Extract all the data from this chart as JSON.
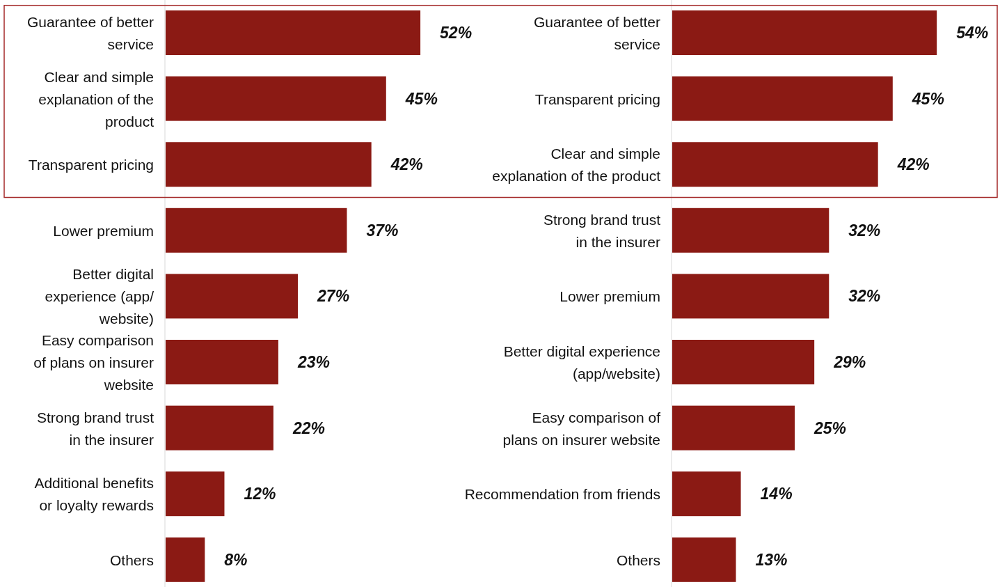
{
  "chart_data": [
    {
      "type": "bar",
      "orientation": "horizontal",
      "categories": [
        "Guarantee of better\nservice",
        "Clear and simple\nexplanation of the\nproduct",
        "Transparent pricing",
        "Lower premium",
        "Better digital\nexperience (app/\nwebsite)",
        "Easy comparison\nof plans on insurer\nwebsite",
        "Strong brand trust\nin the insurer",
        "Additional benefits\nor loyalty rewards",
        "Others"
      ],
      "series": [
        {
          "color": "#8b1a14",
          "values": [
            52,
            45,
            42,
            37,
            27,
            23,
            22,
            12,
            8
          ],
          "value_labels": [
            "52%",
            "45%",
            "42%",
            "37%",
            "27%",
            "23%",
            "22%",
            "12%",
            "8%"
          ]
        }
      ],
      "tick_labels": "y"
    },
    {
      "type": "bar",
      "orientation": "horizontal",
      "categories": [
        "Guarantee of better\nservice",
        "Transparent pricing",
        "Clear and simple\nexplanation of the product",
        "Strong brand trust\nin the insurer",
        "Lower premium",
        "Better digital experience\n(app/website)",
        "Easy comparison of\nplans on insurer website",
        "Recommendation from friends",
        "Others"
      ],
      "series": [
        {
          "color": "#8b1a14",
          "values": [
            54,
            45,
            42,
            32,
            32,
            29,
            25,
            14,
            13
          ],
          "value_labels": [
            "54%",
            "45%",
            "42%",
            "32%",
            "32%",
            "29%",
            "25%",
            "14%",
            "13%"
          ]
        }
      ],
      "tick_labels": "y"
    }
  ]
}
